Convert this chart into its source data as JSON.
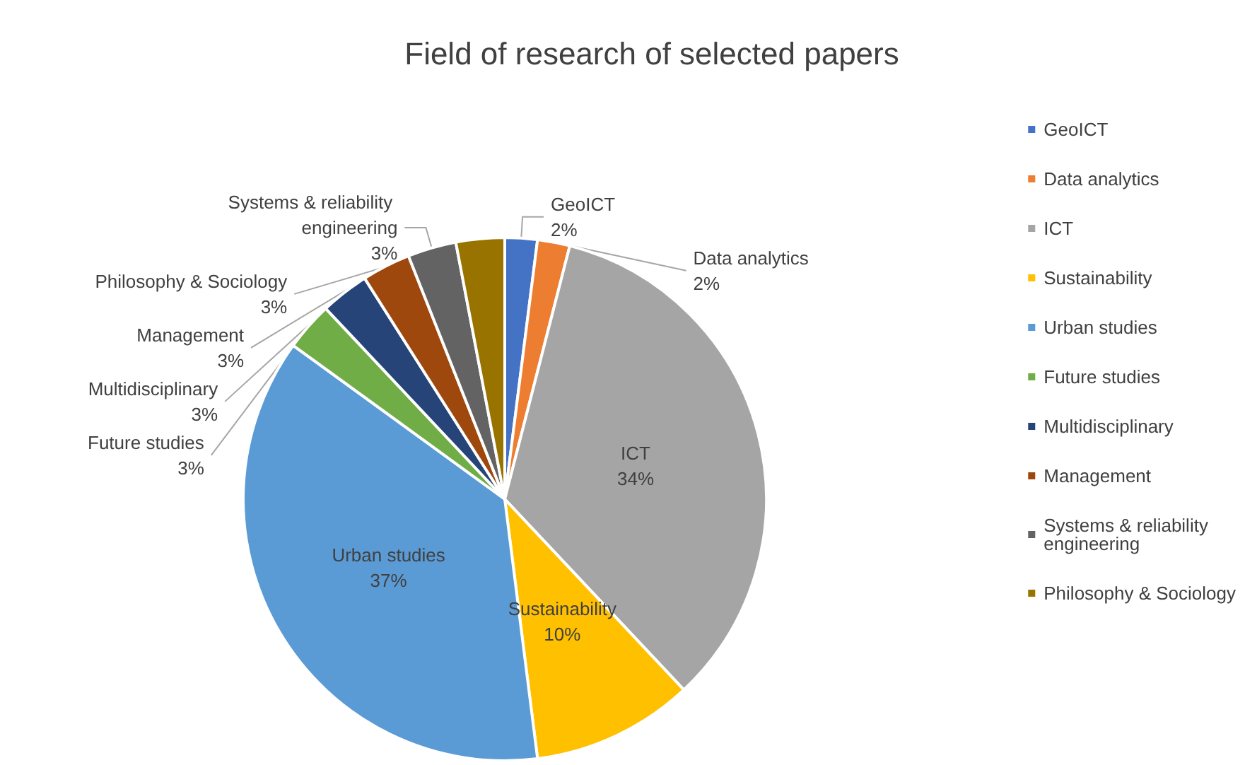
{
  "chart_data": {
    "type": "pie",
    "title": "Field of research of selected papers",
    "categories": [
      "GeoICT",
      "Data analytics",
      "ICT",
      "Sustainability",
      "Urban studies",
      "Future studies",
      "Multidisciplinary",
      "Management",
      "Systems & reliability engineering",
      "Philosophy & Sociology"
    ],
    "values": [
      2,
      2,
      34,
      10,
      37,
      3,
      3,
      3,
      3,
      3
    ],
    "value_labels": [
      "2%",
      "2%",
      "34%",
      "10%",
      "37%",
      "3%",
      "3%",
      "3%",
      "3%",
      "3%"
    ],
    "colors": [
      "#4472c4",
      "#ed7d31",
      "#a5a5a5",
      "#ffc000",
      "#5b9bd5",
      "#70ad47",
      "#264478",
      "#9e480e",
      "#636363",
      "#997300"
    ],
    "legend": "right"
  }
}
